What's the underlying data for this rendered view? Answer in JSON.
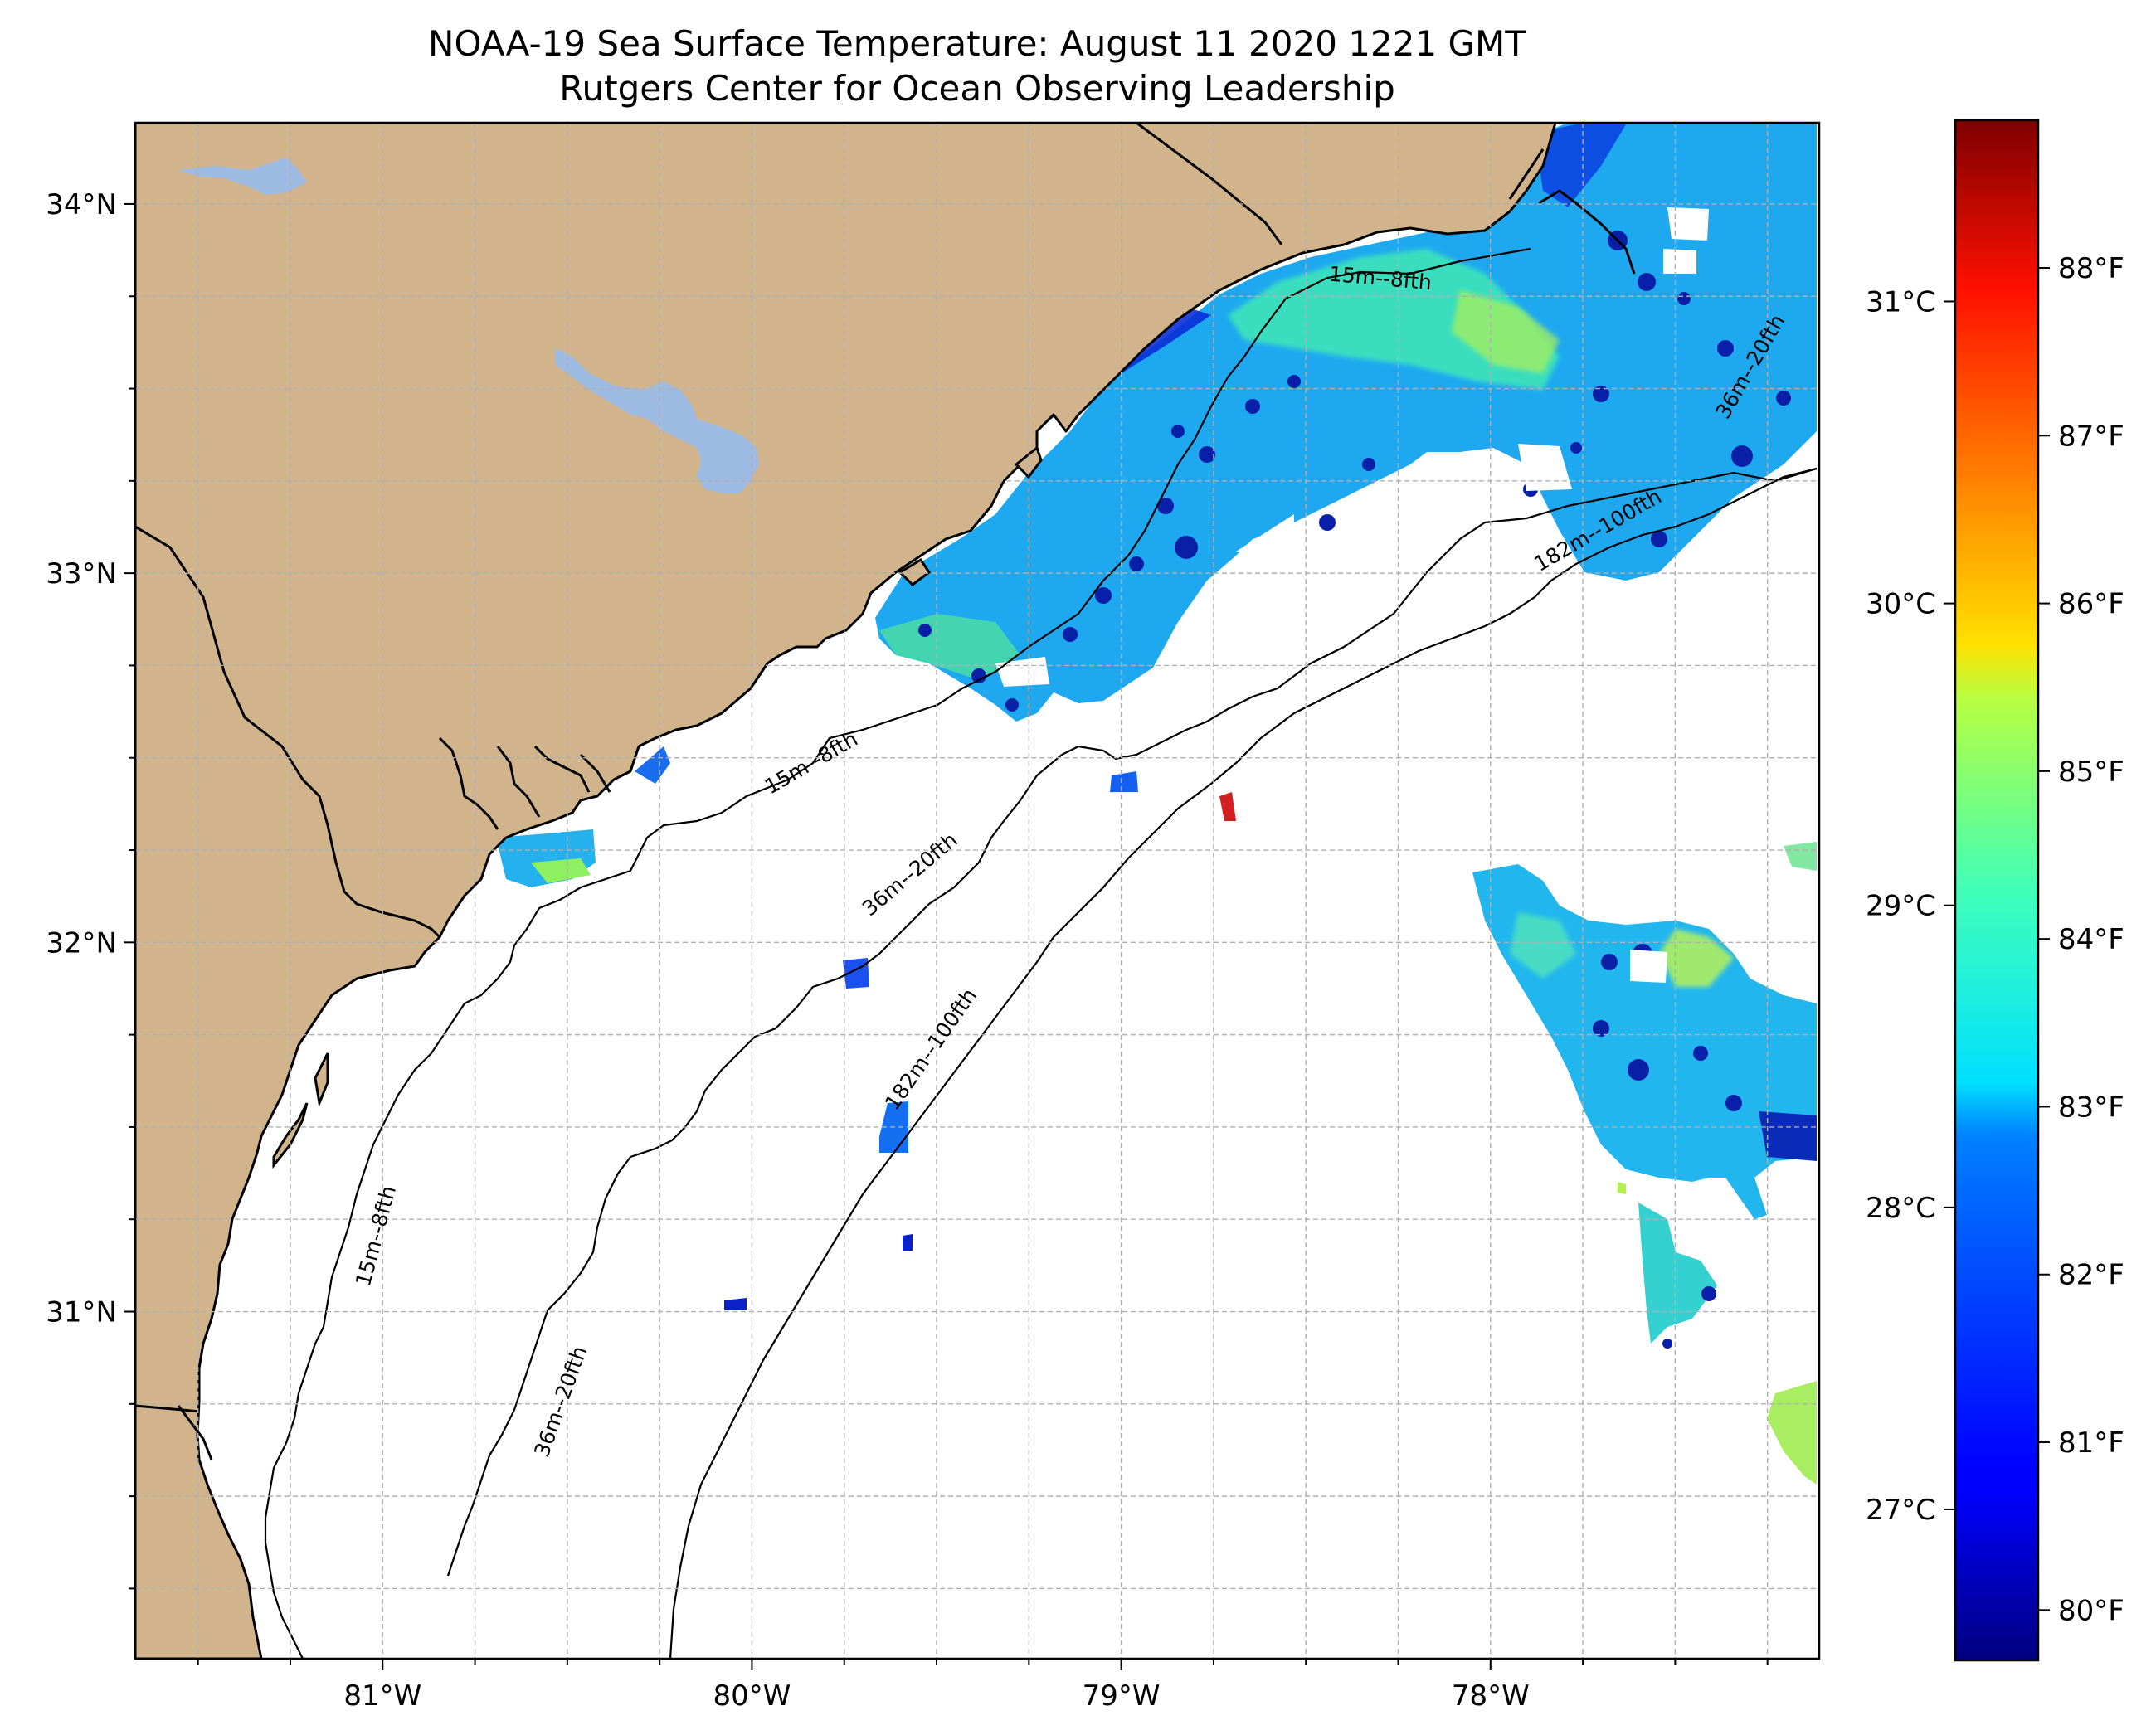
{
  "title": {
    "line1": "NOAA-19 Sea Surface Temperature: August 11 2020 1221 GMT",
    "line2": "Rutgers Center for Ocean Observing Leadership"
  },
  "map": {
    "lon_range": [
      -81.67,
      -77.11
    ],
    "lat_range": [
      30.06,
      34.22
    ],
    "lat_ticks": [
      {
        "value": 34,
        "label": "34°N"
      },
      {
        "value": 33,
        "label": "33°N"
      },
      {
        "value": 32,
        "label": "32°N"
      },
      {
        "value": 31,
        "label": "31°N"
      }
    ],
    "lon_ticks": [
      {
        "value": -81,
        "label": "81°W"
      },
      {
        "value": -80,
        "label": "80°W"
      },
      {
        "value": -79,
        "label": "79°W"
      },
      {
        "value": -78,
        "label": "78°W"
      }
    ],
    "grid": true,
    "grid_step_deg": 0.25,
    "colors": {
      "land": "#D2B48C",
      "lakes": "#9DBBE3",
      "coast": "#000000",
      "grid": "#b0b0b0",
      "ocean_no_data": "#ffffff"
    },
    "isobath_labels": [
      {
        "text": "15m--8fth",
        "lon": -78.3,
        "lat": 33.78,
        "angle": 5
      },
      {
        "text": "15m--8fth",
        "lon": -79.83,
        "lat": 32.47,
        "angle": -30
      },
      {
        "text": "15m--8fth",
        "lon": -81.0,
        "lat": 31.2,
        "angle": -75
      },
      {
        "text": "36m--20fth",
        "lon": -77.28,
        "lat": 33.55,
        "angle": -60
      },
      {
        "text": "36m--20fth",
        "lon": -79.56,
        "lat": 32.17,
        "angle": -40
      },
      {
        "text": "36m--20fth",
        "lon": -80.5,
        "lat": 30.75,
        "angle": -70
      },
      {
        "text": "182m--100fth",
        "lon": -77.7,
        "lat": 33.1,
        "angle": -30
      },
      {
        "text": "182m--100fth",
        "lon": -79.5,
        "lat": 31.7,
        "angle": -55
      }
    ]
  },
  "colorbar": {
    "colormap": "jet",
    "range_c": [
      26.5,
      31.6
    ],
    "celsius_ticks": [
      {
        "value": 31,
        "label": "31°C"
      },
      {
        "value": 30,
        "label": "30°C"
      },
      {
        "value": 29,
        "label": "29°C"
      },
      {
        "value": 28,
        "label": "28°C"
      },
      {
        "value": 27,
        "label": "27°C"
      }
    ],
    "fahrenheit_ticks": [
      {
        "value": 88,
        "label": "88°F"
      },
      {
        "value": 87,
        "label": "87°F"
      },
      {
        "value": 86,
        "label": "86°F"
      },
      {
        "value": 85,
        "label": "85°F"
      },
      {
        "value": 84,
        "label": "84°F"
      },
      {
        "value": 83,
        "label": "83°F"
      },
      {
        "value": 82,
        "label": "82°F"
      },
      {
        "value": 81,
        "label": "81°F"
      },
      {
        "value": 80,
        "label": "80°F"
      }
    ]
  },
  "sst_regions": [
    {
      "name": "nearshore-sc-nc-band",
      "temp_c": 27.9
    },
    {
      "name": "long-bay-warm-core",
      "temp_c": 28.6
    },
    {
      "name": "offshore-patch-east",
      "temp_c": 28.1
    },
    {
      "name": "small-patch-south",
      "temp_c": 28.4
    }
  ]
}
